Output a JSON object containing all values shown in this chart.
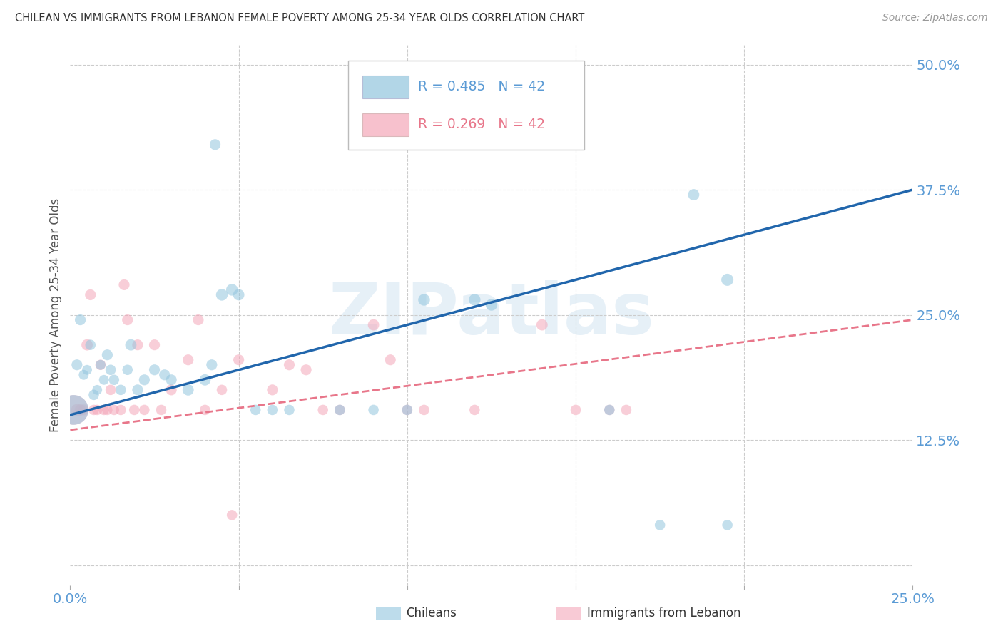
{
  "title": "CHILEAN VS IMMIGRANTS FROM LEBANON FEMALE POVERTY AMONG 25-34 YEAR OLDS CORRELATION CHART",
  "source": "Source: ZipAtlas.com",
  "ylabel": "Female Poverty Among 25-34 Year Olds",
  "xlim": [
    0.0,
    0.25
  ],
  "ylim": [
    -0.02,
    0.52
  ],
  "xticks": [
    0.0,
    0.05,
    0.1,
    0.15,
    0.2,
    0.25
  ],
  "yticks": [
    0.0,
    0.125,
    0.25,
    0.375,
    0.5
  ],
  "xticklabels": [
    "0.0%",
    "",
    "",
    "",
    "",
    "25.0%"
  ],
  "yticklabels_right": [
    "",
    "12.5%",
    "25.0%",
    "37.5%",
    "50.0%"
  ],
  "legend_R_blue": "R = 0.485",
  "legend_N_blue": "N = 42",
  "legend_R_pink": "R = 0.269",
  "legend_N_pink": "N = 42",
  "legend_title_blue": "Chileans",
  "legend_title_pink": "Immigrants from Lebanon",
  "watermark": "ZIPatlas",
  "blue_color": "#92c5de",
  "pink_color": "#f4a7b9",
  "blue_line_color": "#2166ac",
  "pink_line_color": "#e8768a",
  "background_color": "#ffffff",
  "grid_color": "#cccccc",
  "axis_label_color": "#5b9bd5",
  "title_color": "#333333",
  "source_color": "#999999",
  "ylabel_color": "#555555",
  "blue_line_y0": 0.15,
  "blue_line_y1": 0.375,
  "pink_line_y0": 0.135,
  "pink_line_y1": 0.245,
  "chileans_data": [
    [
      0.001,
      0.155,
      900
    ],
    [
      0.002,
      0.2,
      120
    ],
    [
      0.003,
      0.245,
      120
    ],
    [
      0.004,
      0.19,
      100
    ],
    [
      0.005,
      0.195,
      100
    ],
    [
      0.006,
      0.22,
      110
    ],
    [
      0.007,
      0.17,
      110
    ],
    [
      0.008,
      0.175,
      100
    ],
    [
      0.009,
      0.2,
      100
    ],
    [
      0.01,
      0.185,
      100
    ],
    [
      0.011,
      0.21,
      120
    ],
    [
      0.012,
      0.195,
      110
    ],
    [
      0.013,
      0.185,
      110
    ],
    [
      0.015,
      0.175,
      110
    ],
    [
      0.017,
      0.195,
      110
    ],
    [
      0.018,
      0.22,
      130
    ],
    [
      0.02,
      0.175,
      120
    ],
    [
      0.022,
      0.185,
      120
    ],
    [
      0.025,
      0.195,
      120
    ],
    [
      0.028,
      0.19,
      120
    ],
    [
      0.03,
      0.185,
      120
    ],
    [
      0.035,
      0.175,
      130
    ],
    [
      0.04,
      0.185,
      130
    ],
    [
      0.042,
      0.2,
      120
    ],
    [
      0.045,
      0.27,
      140
    ],
    [
      0.048,
      0.275,
      140
    ],
    [
      0.05,
      0.27,
      130
    ],
    [
      0.055,
      0.155,
      110
    ],
    [
      0.06,
      0.155,
      110
    ],
    [
      0.065,
      0.155,
      110
    ],
    [
      0.08,
      0.155,
      110
    ],
    [
      0.09,
      0.155,
      110
    ],
    [
      0.1,
      0.155,
      110
    ],
    [
      0.105,
      0.265,
      140
    ],
    [
      0.12,
      0.265,
      140
    ],
    [
      0.125,
      0.26,
      140
    ],
    [
      0.16,
      0.155,
      110
    ],
    [
      0.175,
      0.04,
      110
    ],
    [
      0.185,
      0.37,
      130
    ],
    [
      0.195,
      0.04,
      110
    ],
    [
      0.043,
      0.42,
      120
    ],
    [
      0.195,
      0.285,
      150
    ]
  ],
  "lebanon_data": [
    [
      0.001,
      0.155,
      900
    ],
    [
      0.002,
      0.155,
      140
    ],
    [
      0.003,
      0.155,
      130
    ],
    [
      0.004,
      0.155,
      120
    ],
    [
      0.005,
      0.22,
      130
    ],
    [
      0.006,
      0.27,
      120
    ],
    [
      0.007,
      0.155,
      110
    ],
    [
      0.008,
      0.155,
      110
    ],
    [
      0.009,
      0.2,
      110
    ],
    [
      0.01,
      0.155,
      110
    ],
    [
      0.011,
      0.155,
      110
    ],
    [
      0.012,
      0.175,
      110
    ],
    [
      0.013,
      0.155,
      110
    ],
    [
      0.015,
      0.155,
      110
    ],
    [
      0.016,
      0.28,
      120
    ],
    [
      0.017,
      0.245,
      120
    ],
    [
      0.019,
      0.155,
      110
    ],
    [
      0.02,
      0.22,
      120
    ],
    [
      0.022,
      0.155,
      110
    ],
    [
      0.025,
      0.22,
      120
    ],
    [
      0.027,
      0.155,
      110
    ],
    [
      0.03,
      0.175,
      120
    ],
    [
      0.035,
      0.205,
      120
    ],
    [
      0.038,
      0.245,
      120
    ],
    [
      0.04,
      0.155,
      110
    ],
    [
      0.045,
      0.175,
      110
    ],
    [
      0.048,
      0.05,
      110
    ],
    [
      0.05,
      0.205,
      120
    ],
    [
      0.06,
      0.175,
      120
    ],
    [
      0.065,
      0.2,
      120
    ],
    [
      0.07,
      0.195,
      120
    ],
    [
      0.075,
      0.155,
      110
    ],
    [
      0.08,
      0.155,
      110
    ],
    [
      0.09,
      0.24,
      130
    ],
    [
      0.095,
      0.205,
      120
    ],
    [
      0.1,
      0.155,
      110
    ],
    [
      0.105,
      0.155,
      110
    ],
    [
      0.12,
      0.155,
      110
    ],
    [
      0.14,
      0.24,
      130
    ],
    [
      0.15,
      0.155,
      110
    ],
    [
      0.16,
      0.155,
      110
    ],
    [
      0.165,
      0.155,
      110
    ]
  ]
}
